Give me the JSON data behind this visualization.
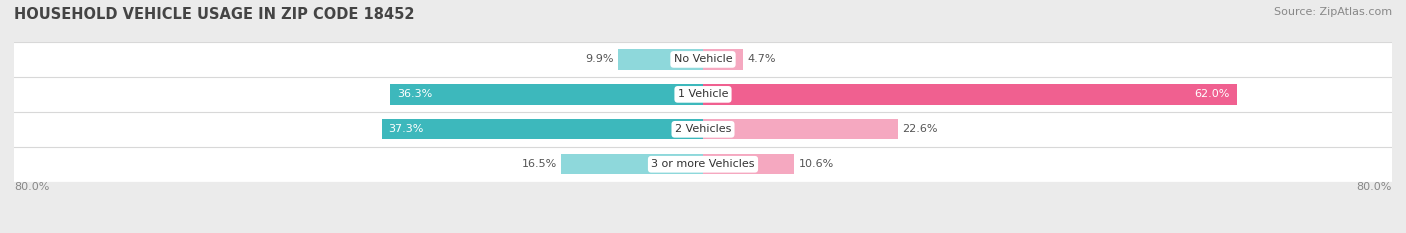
{
  "title": "HOUSEHOLD VEHICLE USAGE IN ZIP CODE 18452",
  "source": "Source: ZipAtlas.com",
  "categories": [
    "No Vehicle",
    "1 Vehicle",
    "2 Vehicles",
    "3 or more Vehicles"
  ],
  "owner_values": [
    9.9,
    36.3,
    37.3,
    16.5
  ],
  "renter_values": [
    4.7,
    62.0,
    22.6,
    10.6
  ],
  "owner_colors": [
    "#8ed8db",
    "#3db8bc",
    "#3db8bc",
    "#8ed8db"
  ],
  "renter_colors": [
    "#f5a8c0",
    "#f06090",
    "#f5a8c0",
    "#f5a8c0"
  ],
  "bg_color": "#ebebeb",
  "row_bg_color": "#ffffff",
  "row_sep_color": "#d8d8d8",
  "axis_min": -80.0,
  "axis_max": 80.0,
  "axis_label_left": "80.0%",
  "axis_label_right": "80.0%",
  "legend_owner_color": "#3db8bc",
  "legend_renter_color": "#f06090",
  "title_fontsize": 10.5,
  "source_fontsize": 8,
  "label_fontsize": 8,
  "bar_height": 0.58,
  "value_label_color": "#555555",
  "value_label_white": "#ffffff",
  "center_label_color": "#333333"
}
